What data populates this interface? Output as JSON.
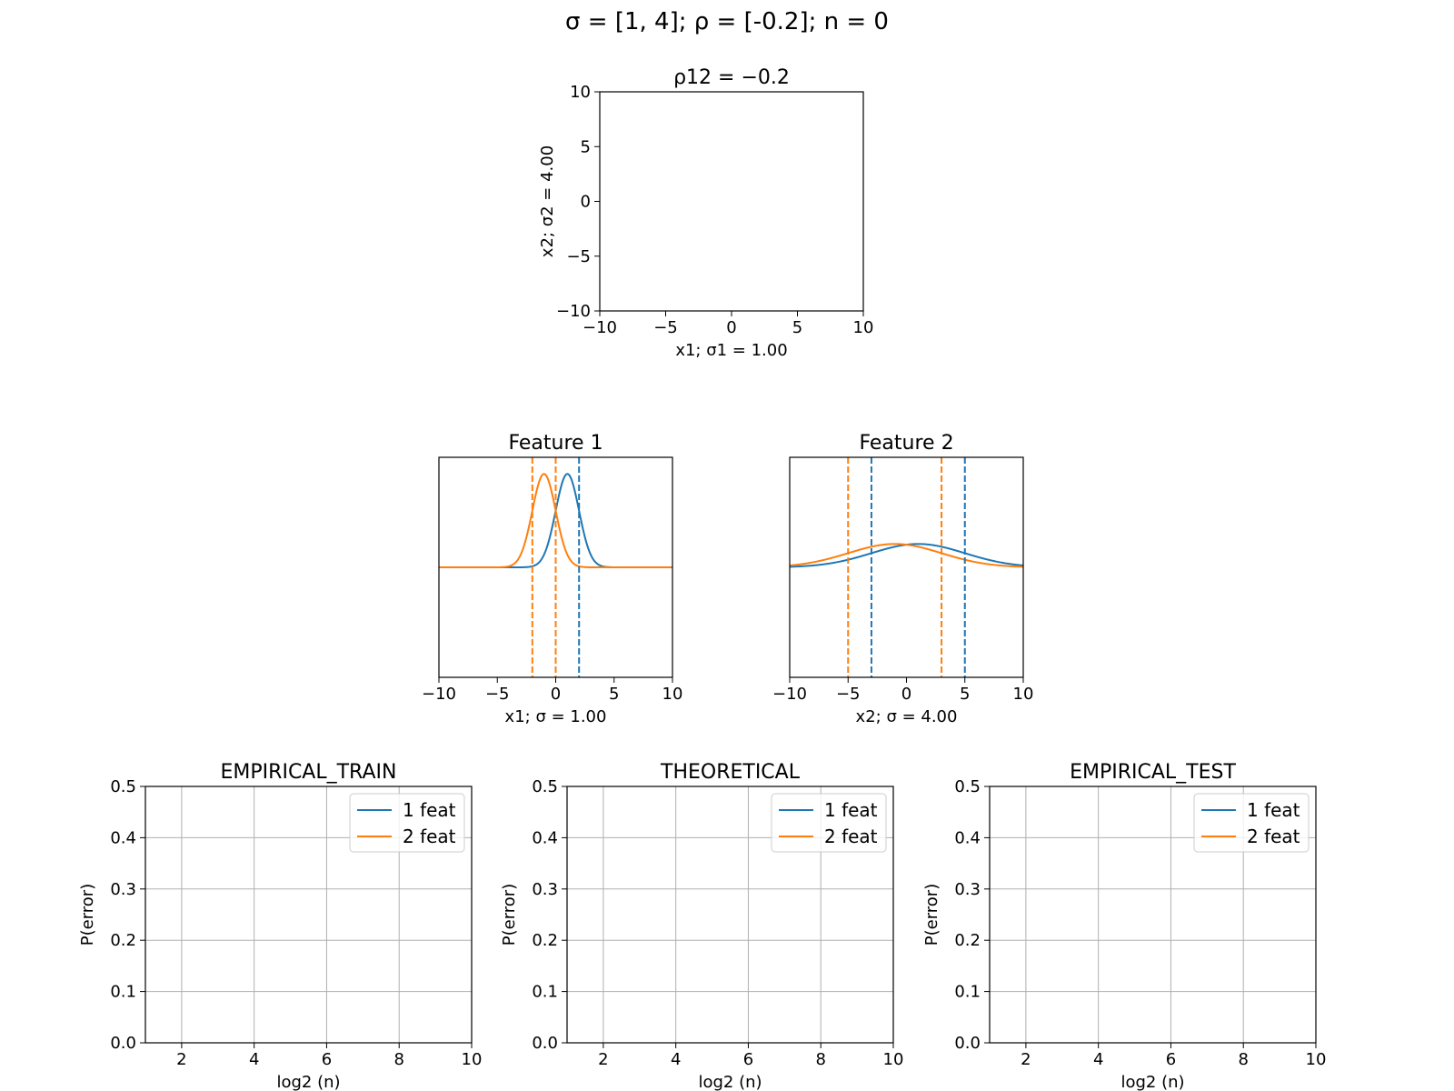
{
  "figure": {
    "suptitle": "σ = [1, 4]; ρ = [-0.2]; n = 0"
  },
  "colors": {
    "class1": "#1f77b4",
    "class2": "#ff7f0e",
    "grid": "#b0b0b0"
  },
  "chart_data": [
    {
      "id": "scatter",
      "type": "scatter",
      "title": "ρ12 = −0.2",
      "xlabel": "x1; σ1 = 1.00",
      "ylabel": "x2; σ2 = 4.00",
      "xlim": [
        -10,
        10
      ],
      "ylim": [
        -10,
        10
      ],
      "xticks": [
        -10,
        -5,
        0,
        5,
        10
      ],
      "yticks": [
        -10,
        -5,
        0,
        5,
        10
      ],
      "xtick_labels": [
        "−10",
        "−5",
        "0",
        "5",
        "10"
      ],
      "ytick_labels": [
        "−10",
        "−5",
        "0",
        "5",
        "10"
      ],
      "grid": false,
      "points": []
    },
    {
      "id": "feature1",
      "type": "line",
      "title": "Feature 1",
      "xlabel": "x1; σ = 1.00",
      "xlim": [
        -10,
        10
      ],
      "ylim": [
        -0.47,
        0.47
      ],
      "xticks": [
        -10,
        -5,
        0,
        5,
        10
      ],
      "xtick_labels": [
        "−10",
        "−5",
        "0",
        "5",
        "10"
      ],
      "yticks_visible": false,
      "grid": false,
      "series": [
        {
          "mean": 1,
          "sigma": 1,
          "color": "class1"
        },
        {
          "mean": -1,
          "sigma": 1,
          "color": "class2"
        }
      ],
      "vlines": [
        {
          "x": -2,
          "color": "class2"
        },
        {
          "x": 0,
          "color": "class2"
        },
        {
          "x": 2,
          "color": "class1"
        }
      ]
    },
    {
      "id": "feature2",
      "type": "line",
      "title": "Feature 2",
      "xlabel": "x2; σ = 4.00",
      "xlim": [
        -10,
        10
      ],
      "ylim": [
        -0.47,
        0.47
      ],
      "xticks": [
        -10,
        -5,
        0,
        5,
        10
      ],
      "xtick_labels": [
        "−10",
        "−5",
        "0",
        "5",
        "10"
      ],
      "yticks_visible": false,
      "grid": false,
      "series": [
        {
          "mean": 1,
          "sigma": 4,
          "color": "class1"
        },
        {
          "mean": -1,
          "sigma": 4,
          "color": "class2"
        }
      ],
      "vlines": [
        {
          "x": -5,
          "color": "class2"
        },
        {
          "x": -3,
          "color": "class1"
        },
        {
          "x": 3,
          "color": "class2"
        },
        {
          "x": 5,
          "color": "class1"
        }
      ]
    },
    {
      "id": "empirical_train",
      "type": "line",
      "title": "EMPIRICAL_TRAIN",
      "xlabel": "log2 (n)",
      "ylabel": "P(error)",
      "xlim": [
        1,
        10
      ],
      "ylim": [
        0,
        0.5
      ],
      "xticks": [
        2,
        4,
        6,
        8,
        10
      ],
      "yticks": [
        0.0,
        0.1,
        0.2,
        0.3,
        0.4,
        0.5
      ],
      "xtick_labels": [
        "2",
        "4",
        "6",
        "8",
        "10"
      ],
      "ytick_labels": [
        "0.0",
        "0.1",
        "0.2",
        "0.3",
        "0.4",
        "0.5"
      ],
      "grid": true,
      "legend": "top-right",
      "series": [
        {
          "name": "1 feat",
          "color": "class1",
          "x": [],
          "y": []
        },
        {
          "name": "2 feat",
          "color": "class2",
          "x": [],
          "y": []
        }
      ]
    },
    {
      "id": "theoretical",
      "type": "line",
      "title": "THEORETICAL",
      "xlabel": "log2 (n)",
      "ylabel": "P(error)",
      "xlim": [
        1,
        10
      ],
      "ylim": [
        0,
        0.5
      ],
      "xticks": [
        2,
        4,
        6,
        8,
        10
      ],
      "yticks": [
        0.0,
        0.1,
        0.2,
        0.3,
        0.4,
        0.5
      ],
      "xtick_labels": [
        "2",
        "4",
        "6",
        "8",
        "10"
      ],
      "ytick_labels": [
        "0.0",
        "0.1",
        "0.2",
        "0.3",
        "0.4",
        "0.5"
      ],
      "grid": true,
      "legend": "top-right",
      "series": [
        {
          "name": "1 feat",
          "color": "class1",
          "x": [],
          "y": []
        },
        {
          "name": "2 feat",
          "color": "class2",
          "x": [],
          "y": []
        }
      ]
    },
    {
      "id": "empirical_test",
      "type": "line",
      "title": "EMPIRICAL_TEST",
      "xlabel": "log2 (n)",
      "ylabel": "P(error)",
      "xlim": [
        1,
        10
      ],
      "ylim": [
        0,
        0.5
      ],
      "xticks": [
        2,
        4,
        6,
        8,
        10
      ],
      "yticks": [
        0.0,
        0.1,
        0.2,
        0.3,
        0.4,
        0.5
      ],
      "xtick_labels": [
        "2",
        "4",
        "6",
        "8",
        "10"
      ],
      "ytick_labels": [
        "0.0",
        "0.1",
        "0.2",
        "0.3",
        "0.4",
        "0.5"
      ],
      "grid": true,
      "legend": "top-right",
      "series": [
        {
          "name": "1 feat",
          "color": "class1",
          "x": [],
          "y": []
        },
        {
          "name": "2 feat",
          "color": "class2",
          "x": [],
          "y": []
        }
      ]
    }
  ]
}
